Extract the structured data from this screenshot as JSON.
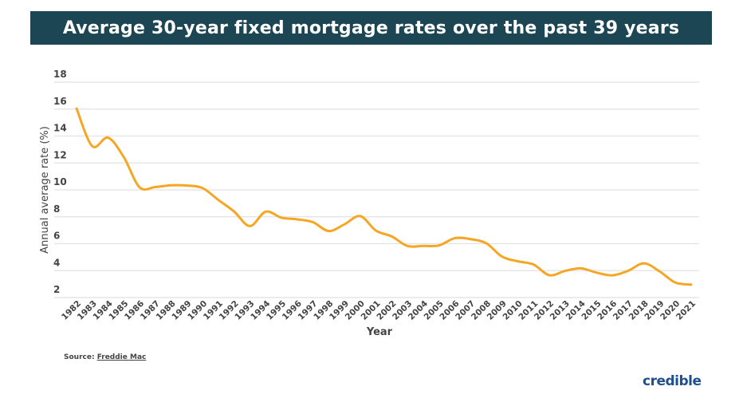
{
  "chart_data": {
    "type": "line",
    "title": "Average 30-year fixed mortgage rates over the past 39 years",
    "xlabel": "Year",
    "ylabel": "Annual average rate (%)",
    "ylim": [
      2,
      18
    ],
    "yticks": [
      2,
      4,
      6,
      8,
      10,
      12,
      14,
      16,
      18
    ],
    "grid": true,
    "line_color": "#f5a623",
    "categories": [
      "1982",
      "1983",
      "1984",
      "1985",
      "1986",
      "1987",
      "1988",
      "1989",
      "1990",
      "1991",
      "1992",
      "1993",
      "1994",
      "1995",
      "1996",
      "1997",
      "1998",
      "1999",
      "2000",
      "2001",
      "2002",
      "2003",
      "2004",
      "2005",
      "2006",
      "2007",
      "2008",
      "2009",
      "2010",
      "2011",
      "2012",
      "2013",
      "2014",
      "2015",
      "2016",
      "2017",
      "2018",
      "2019",
      "2020",
      "2021"
    ],
    "values": [
      16.04,
      13.24,
      13.88,
      12.43,
      10.19,
      10.21,
      10.34,
      10.32,
      10.13,
      9.25,
      8.39,
      7.31,
      8.38,
      7.93,
      7.81,
      7.6,
      6.94,
      7.44,
      8.05,
      6.97,
      6.54,
      5.83,
      5.84,
      5.87,
      6.41,
      6.34,
      6.03,
      5.04,
      4.69,
      4.45,
      3.66,
      3.98,
      4.17,
      3.85,
      3.65,
      3.99,
      4.54,
      3.94,
      3.11,
      2.96
    ]
  },
  "source": {
    "label": "Source: ",
    "link": "Freddie Mac"
  },
  "brand": "credible",
  "colors": {
    "title_bg": "#1c4653",
    "brand": "#1f4f8f"
  }
}
